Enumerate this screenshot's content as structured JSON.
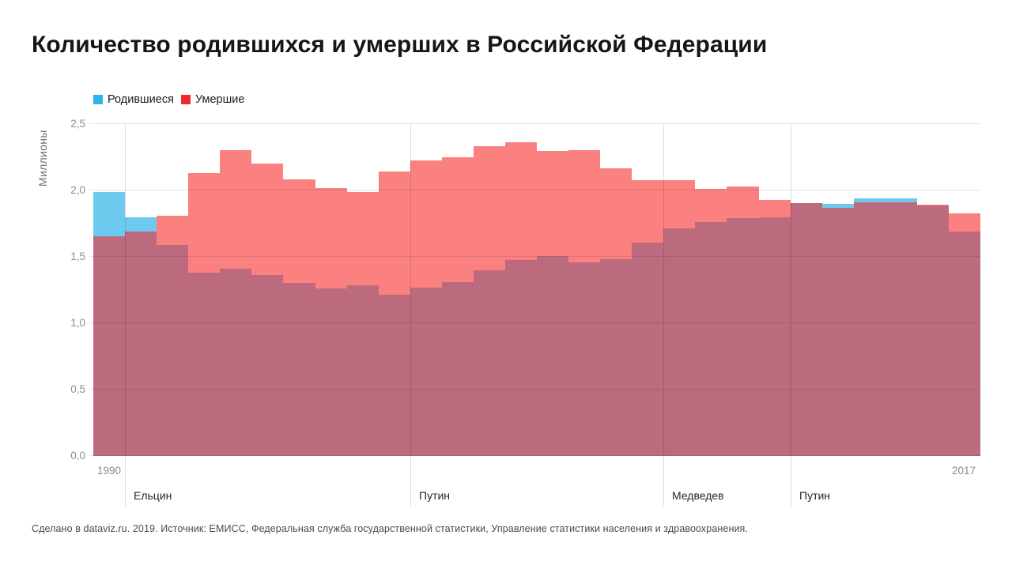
{
  "title": "Количество родившихся и умерших в Российской Федерации",
  "legend": {
    "birth_label": "Родившиеся",
    "death_label": "Умершие"
  },
  "colors": {
    "birth_legend": "#2DB4E8",
    "death_legend": "#EC2C2C",
    "birth_bar": "#6EC9EE",
    "death_bar": "#FB8080",
    "overlap_bar": "#BC6A7E"
  },
  "y_axis": {
    "label": "Миллионы",
    "ticks": [
      "2,5",
      "2,0",
      "1,5",
      "1,0",
      "0,5",
      "0,0"
    ],
    "tick_values": [
      2.5,
      2.0,
      1.5,
      1.0,
      0.5,
      0.0
    ]
  },
  "x_axis": {
    "start_label": "1990",
    "end_label": "2017"
  },
  "footer": "Сделано в dataviz.ru. 2019. Источник: ЕМИСС, Федеральная служба государственной статистики, Управление статистики населения и здравоохранения.",
  "chart_data": {
    "type": "bar",
    "title": "Количество родившихся и умерших в Российской Федерации",
    "xlabel": "",
    "ylabel": "Миллионы",
    "ylim": [
      0,
      2.5
    ],
    "grid": true,
    "legend_position": "top-left",
    "overlap_color": "#BC6A7E",
    "x": [
      1990,
      1991,
      1992,
      1993,
      1994,
      1995,
      1996,
      1997,
      1998,
      1999,
      2000,
      2001,
      2002,
      2003,
      2004,
      2005,
      2006,
      2007,
      2008,
      2009,
      2010,
      2011,
      2012,
      2013,
      2014,
      2015,
      2016,
      2017
    ],
    "series": [
      {
        "name": "Родившиеся",
        "color": "#6EC9EE",
        "values": [
          1.989,
          1.795,
          1.588,
          1.379,
          1.408,
          1.364,
          1.305,
          1.26,
          1.283,
          1.215,
          1.267,
          1.312,
          1.397,
          1.477,
          1.503,
          1.457,
          1.48,
          1.61,
          1.714,
          1.762,
          1.789,
          1.797,
          1.902,
          1.896,
          1.943,
          1.941,
          1.889,
          1.69
        ]
      },
      {
        "name": "Умершие",
        "color": "#FB8080",
        "values": [
          1.656,
          1.69,
          1.807,
          2.129,
          2.301,
          2.204,
          2.082,
          2.016,
          1.989,
          2.144,
          2.225,
          2.252,
          2.332,
          2.366,
          2.295,
          2.304,
          2.167,
          2.08,
          2.076,
          2.011,
          2.029,
          1.926,
          1.906,
          1.872,
          1.912,
          1.908,
          1.891,
          1.826
        ]
      }
    ],
    "annotations": [
      {
        "label": "Ельцин",
        "at_year": 1991
      },
      {
        "label": "Путин",
        "at_year": 2000
      },
      {
        "label": "Медведев",
        "at_year": 2008
      },
      {
        "label": "Путин",
        "at_year": 2012
      }
    ]
  }
}
